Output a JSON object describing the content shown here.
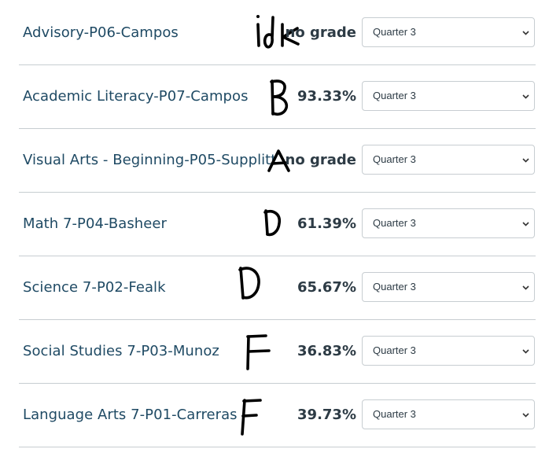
{
  "courses": [
    {
      "name": "Advisory-P06-Campos",
      "grade": "no grade",
      "period": "Quarter 3",
      "note": "idk"
    },
    {
      "name": "Academic Literacy-P07-Campos",
      "grade": "93.33%",
      "period": "Quarter 3",
      "note": "B"
    },
    {
      "name": "Visual Arts - Beginning-P05-Supplitt",
      "grade": "no grade",
      "period": "Quarter 3",
      "note": "A"
    },
    {
      "name": "Math 7-P04-Basheer",
      "grade": "61.39%",
      "period": "Quarter 3",
      "note": "D"
    },
    {
      "name": "Science 7-P02-Fealk",
      "grade": "65.67%",
      "period": "Quarter 3",
      "note": "D"
    },
    {
      "name": "Social Studies 7-P03-Munoz",
      "grade": "36.83%",
      "period": "Quarter 3",
      "note": "F"
    },
    {
      "name": "Language Arts 7-P01-Carreras",
      "grade": "39.73%",
      "period": "Quarter 3",
      "note": "F"
    }
  ],
  "colors": {
    "link": "#1f4a64",
    "grade_text": "#2d3b45",
    "divider": "#c7cdd1",
    "ink": "#000000"
  },
  "icons": {
    "select_arrow": "chevron-down-icon"
  }
}
